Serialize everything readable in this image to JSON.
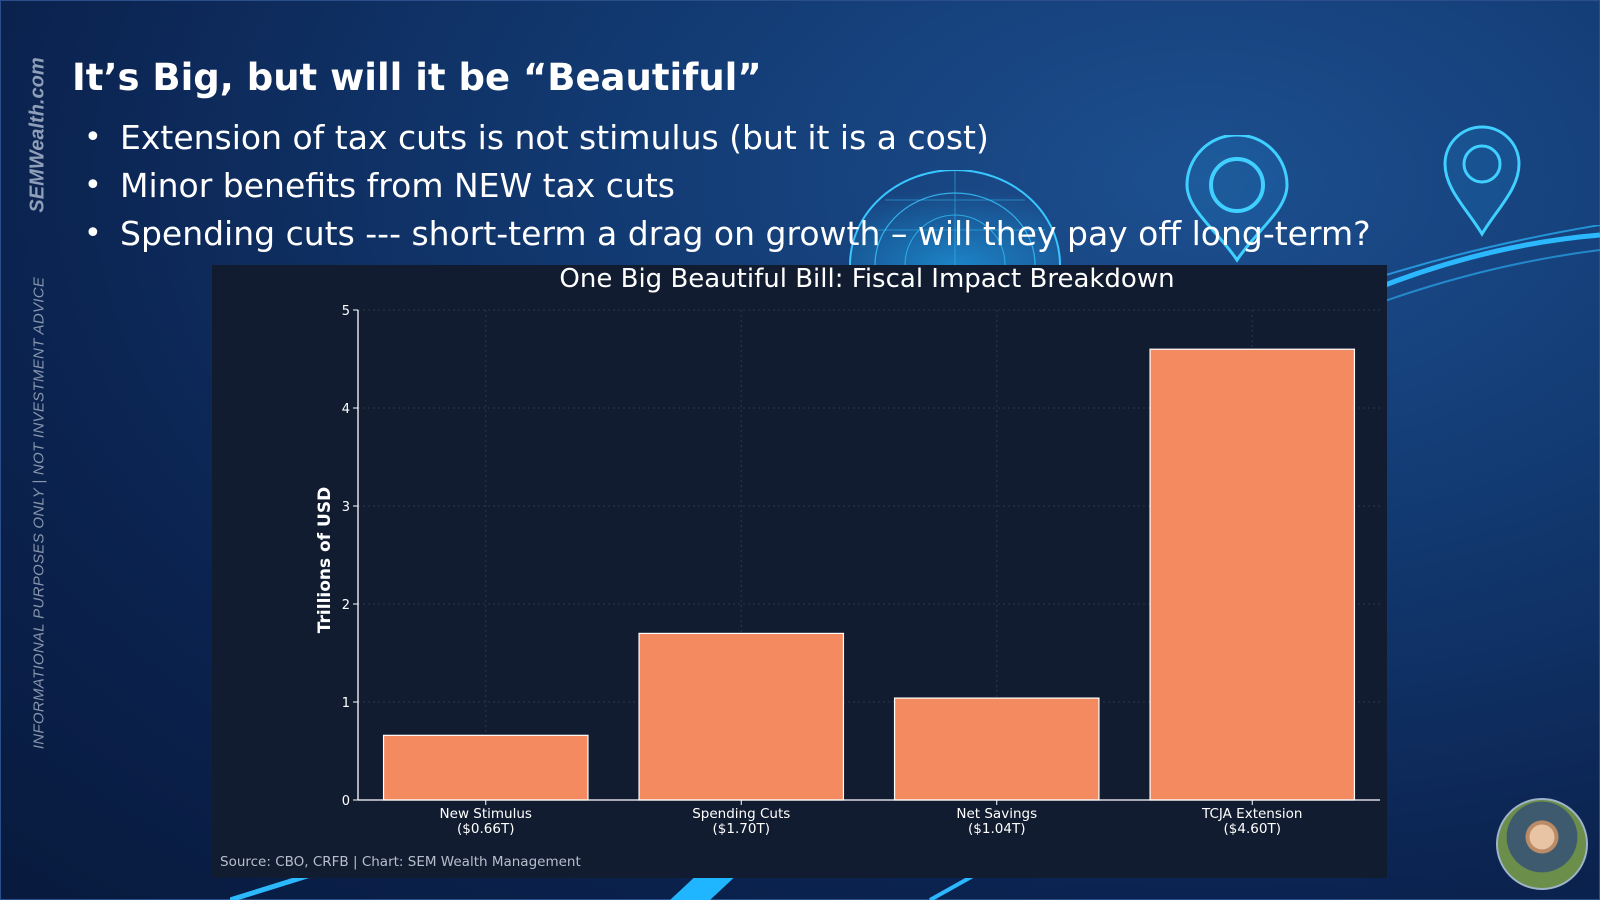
{
  "slide": {
    "title": "It’s Big, but will it be “Beautiful”",
    "bullets": [
      "Extension of tax cuts is not stimulus (but it is a cost)",
      "Minor benefits from NEW tax cuts",
      "Spending cuts --- short-term a drag on growth – will they pay off long-term?"
    ],
    "brand": "SEMWealth.com",
    "disclaimer": "INFORMATIONAL PURPOSES ONLY | NOT INVESTMENT ADVICE"
  },
  "chart_data": {
    "type": "bar",
    "title": "One Big Beautiful Bill: Fiscal Impact Breakdown",
    "ylabel": "Trillions of USD",
    "xlabel": "",
    "categories": [
      "New Stimulus",
      "Spending Cuts",
      "Net Savings",
      "TCJA Extension"
    ],
    "category_sublabels": [
      "($0.66T)",
      "($1.70T)",
      "($1.04T)",
      "($4.60T)"
    ],
    "values": [
      0.66,
      1.7,
      1.04,
      4.6
    ],
    "ylim": [
      0,
      5
    ],
    "yticks": [
      "0",
      "1",
      "2",
      "3",
      "4",
      "5"
    ],
    "grid": true,
    "bar_color": "#f48b60",
    "source": "Source: CBO, CRFB | Chart: SEM Wealth Management"
  },
  "colors": {
    "background": "#0b2350",
    "panel": "#121c30",
    "accent": "#1fb6ff"
  }
}
